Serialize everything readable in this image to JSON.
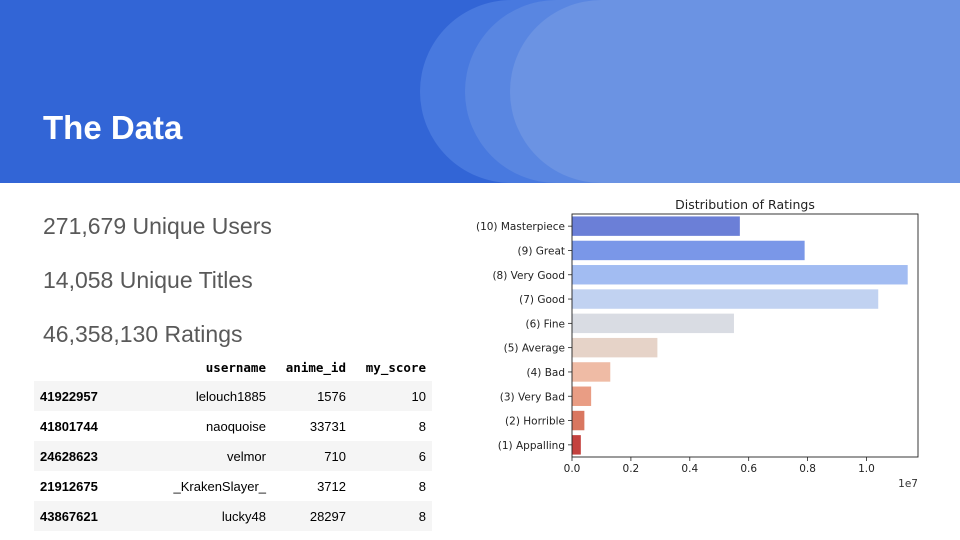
{
  "slide": {
    "title": "The Data",
    "stats": [
      "271,679 Unique Users",
      "14,058 Unique Titles",
      "46,358,130 Ratings"
    ]
  },
  "table": {
    "columns": [
      "",
      "username",
      "anime_id",
      "my_score"
    ],
    "rows": [
      {
        "index": "41922957",
        "username": "lelouch1885",
        "anime_id": "1576",
        "my_score": "10"
      },
      {
        "index": "41801744",
        "username": "naoquoise",
        "anime_id": "33731",
        "my_score": "8"
      },
      {
        "index": "24628623",
        "username": "velmor",
        "anime_id": "710",
        "my_score": "6"
      },
      {
        "index": "21912675",
        "username": "_KrakenSlayer_",
        "anime_id": "3712",
        "my_score": "8"
      },
      {
        "index": "43867621",
        "username": "lucky48",
        "anime_id": "28297",
        "my_score": "8"
      }
    ]
  },
  "chart_data": {
    "type": "bar",
    "orientation": "horizontal",
    "title": "Distribution of Ratings",
    "categories": [
      "(10) Masterpiece",
      "(9) Great",
      "(8) Very Good",
      "(7) Good",
      "(6) Fine",
      "(5) Average",
      "(4) Bad",
      "(3) Very Bad",
      "(2) Horrible",
      "(1) Appalling"
    ],
    "values": [
      5700000,
      7900000,
      11400000,
      10400000,
      5500000,
      2900000,
      1300000,
      650000,
      420000,
      300000
    ],
    "colors": [
      "#6b7fd7",
      "#7a97e8",
      "#a2bcf2",
      "#c1d2f1",
      "#d9dce3",
      "#e6d3c8",
      "#efbba5",
      "#e99d84",
      "#d97760",
      "#c4423f"
    ],
    "xticks": [
      "0.0",
      "0.2",
      "0.4",
      "0.6",
      "0.8",
      "1.0"
    ],
    "xlim": [
      0,
      11750000
    ],
    "scale_label": "1e7",
    "grid": false
  }
}
